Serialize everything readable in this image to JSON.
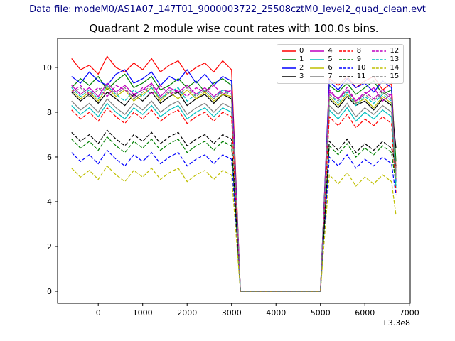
{
  "header": {
    "text": "Data file: modeM0/AS1A07_147T01_9000003722_25508cztM0_level2_quad_clean.evt",
    "color": "#000080"
  },
  "chart_data": {
    "type": "line",
    "title": "Quadrant 2 module wise count rates with 100.0s bins.",
    "xlabel": "",
    "ylabel": "",
    "x_offset_label": "+3.3e8",
    "xlim": [
      -915,
      7020
    ],
    "ylim": [
      -0.54,
      11.3
    ],
    "xticks": [
      0,
      1000,
      2000,
      3000,
      4000,
      5000,
      6000,
      7000
    ],
    "yticks": [
      0,
      2,
      4,
      6,
      8,
      10
    ],
    "grid": false,
    "legend_position": "upper right inside axes, 4 columns",
    "x_units": "time (s), offset +3.3e8",
    "y_units": "count rate (counts/s)",
    "x": [
      -600,
      -400,
      -200,
      0,
      200,
      400,
      600,
      800,
      1000,
      1200,
      1400,
      1600,
      1800,
      2000,
      2200,
      2400,
      2600,
      2800,
      3000,
      3200,
      3400,
      3600,
      3800,
      4000,
      4200,
      4400,
      4600,
      4800,
      5000,
      5200,
      5400,
      5600,
      5800,
      6000,
      6200,
      6400,
      6600,
      6700
    ],
    "series": [
      {
        "name": "0",
        "color": "#ff0000",
        "dash": false,
        "values": [
          10.4,
          9.9,
          10.1,
          9.7,
          10.5,
          10.0,
          9.8,
          10.2,
          9.9,
          10.4,
          9.8,
          10.1,
          10.3,
          9.7,
          10.0,
          10.2,
          9.8,
          10.3,
          9.9,
          0,
          0,
          0,
          0,
          0,
          0,
          0,
          0,
          0,
          0,
          9.5,
          9.2,
          9.6,
          9.1,
          9.4,
          9.6,
          9.0,
          9.3,
          5.5
        ]
      },
      {
        "name": "1",
        "color": "#008000",
        "dash": false,
        "values": [
          9.1,
          9.5,
          9.2,
          9.6,
          9.0,
          9.4,
          9.7,
          9.1,
          9.3,
          9.6,
          9.0,
          9.2,
          9.5,
          9.1,
          9.4,
          8.9,
          9.3,
          9.5,
          9.2,
          0,
          0,
          0,
          0,
          0,
          0,
          0,
          0,
          0,
          0,
          9.2,
          8.9,
          9.3,
          8.8,
          9.1,
          9.4,
          8.8,
          9.0,
          5.8
        ]
      },
      {
        "name": "2",
        "color": "#0000ff",
        "dash": false,
        "values": [
          9.6,
          9.3,
          9.8,
          9.4,
          9.2,
          9.7,
          9.9,
          9.3,
          9.5,
          9.8,
          9.2,
          9.6,
          9.4,
          9.9,
          9.3,
          9.7,
          9.2,
          9.6,
          9.4,
          0,
          0,
          0,
          0,
          0,
          0,
          0,
          0,
          0,
          0,
          9.4,
          9.0,
          9.5,
          9.1,
          9.3,
          8.9,
          9.4,
          9.1,
          4.9
        ]
      },
      {
        "name": "3",
        "color": "#000000",
        "dash": false,
        "values": [
          8.9,
          8.5,
          8.8,
          8.4,
          8.9,
          8.6,
          8.3,
          8.8,
          8.5,
          8.9,
          8.4,
          8.7,
          8.9,
          8.3,
          8.6,
          8.8,
          8.4,
          8.8,
          8.6,
          0,
          0,
          0,
          0,
          0,
          0,
          0,
          0,
          0,
          0,
          8.6,
          8.2,
          8.7,
          8.3,
          8.5,
          8.1,
          8.6,
          8.3,
          6.4
        ]
      },
      {
        "name": "4",
        "color": "#bf00bf",
        "dash": false,
        "values": [
          9.2,
          8.8,
          9.1,
          8.7,
          9.3,
          8.9,
          9.2,
          8.8,
          9.0,
          9.3,
          8.7,
          9.1,
          8.9,
          9.2,
          8.8,
          9.1,
          8.7,
          9.0,
          8.9,
          0,
          0,
          0,
          0,
          0,
          0,
          0,
          0,
          0,
          0,
          8.9,
          8.6,
          9.0,
          8.5,
          8.8,
          9.1,
          8.5,
          8.8,
          5.2
        ]
      },
      {
        "name": "5",
        "color": "#00bfbf",
        "dash": false,
        "values": [
          8.3,
          7.9,
          8.2,
          7.8,
          8.4,
          8.0,
          7.7,
          8.2,
          7.9,
          8.3,
          7.8,
          8.1,
          8.3,
          7.7,
          8.0,
          8.2,
          7.8,
          8.2,
          8.0,
          0,
          0,
          0,
          0,
          0,
          0,
          0,
          0,
          0,
          0,
          8.1,
          7.7,
          8.2,
          7.6,
          8.0,
          7.7,
          8.1,
          7.8,
          4.6
        ]
      },
      {
        "name": "6",
        "color": "#bfbf00",
        "dash": false,
        "values": [
          9.0,
          8.6,
          8.9,
          8.5,
          9.1,
          8.7,
          9.0,
          8.5,
          8.8,
          9.1,
          8.5,
          8.9,
          8.6,
          9.0,
          8.6,
          8.9,
          8.5,
          8.8,
          8.7,
          0,
          0,
          0,
          0,
          0,
          0,
          0,
          0,
          0,
          0,
          8.7,
          8.3,
          8.8,
          8.4,
          8.6,
          8.2,
          8.7,
          8.4,
          5.0
        ]
      },
      {
        "name": "7",
        "color": "#808080",
        "dash": false,
        "values": [
          8.5,
          8.1,
          8.4,
          8.0,
          8.6,
          8.2,
          7.9,
          8.4,
          8.1,
          8.5,
          8.0,
          8.3,
          8.5,
          7.9,
          8.2,
          8.4,
          8.0,
          8.4,
          8.2,
          0,
          0,
          0,
          0,
          0,
          0,
          0,
          0,
          0,
          0,
          8.3,
          7.9,
          8.4,
          7.8,
          8.2,
          7.9,
          8.3,
          8.0,
          5.4
        ]
      },
      {
        "name": "8",
        "color": "#ff0000",
        "dash": true,
        "values": [
          8.1,
          7.7,
          8.0,
          7.6,
          8.2,
          7.8,
          7.5,
          8.0,
          7.7,
          8.1,
          7.6,
          7.9,
          8.1,
          7.5,
          7.8,
          8.0,
          7.6,
          8.0,
          7.8,
          0,
          0,
          0,
          0,
          0,
          0,
          0,
          0,
          0,
          0,
          7.8,
          7.4,
          7.9,
          7.3,
          7.7,
          7.4,
          7.8,
          7.5,
          4.4
        ]
      },
      {
        "name": "9",
        "color": "#008000",
        "dash": true,
        "values": [
          6.8,
          6.4,
          6.7,
          6.3,
          6.9,
          6.5,
          6.2,
          6.7,
          6.4,
          6.8,
          6.3,
          6.6,
          6.8,
          6.2,
          6.5,
          6.7,
          6.3,
          6.7,
          6.5,
          0,
          0,
          0,
          0,
          0,
          0,
          0,
          0,
          0,
          0,
          6.5,
          6.1,
          6.6,
          6.0,
          6.4,
          6.1,
          6.5,
          6.2,
          4.8
        ]
      },
      {
        "name": "10",
        "color": "#0000ff",
        "dash": true,
        "values": [
          6.2,
          5.8,
          6.1,
          5.7,
          6.3,
          5.9,
          5.6,
          6.1,
          5.8,
          6.2,
          5.7,
          6.0,
          6.2,
          5.6,
          5.9,
          6.1,
          5.7,
          6.1,
          5.9,
          0,
          0,
          0,
          0,
          0,
          0,
          0,
          0,
          0,
          0,
          6.0,
          5.6,
          6.1,
          5.5,
          5.9,
          5.6,
          6.0,
          5.7,
          4.3
        ]
      },
      {
        "name": "11",
        "color": "#000000",
        "dash": true,
        "values": [
          7.1,
          6.7,
          7.0,
          6.6,
          7.2,
          6.8,
          6.5,
          7.0,
          6.7,
          7.1,
          6.6,
          6.9,
          7.1,
          6.5,
          6.8,
          7.0,
          6.6,
          7.0,
          6.8,
          0,
          0,
          0,
          0,
          0,
          0,
          0,
          0,
          0,
          0,
          6.7,
          6.3,
          6.8,
          6.2,
          6.6,
          6.3,
          6.7,
          6.4,
          5.6
        ]
      },
      {
        "name": "12",
        "color": "#bf00bf",
        "dash": true,
        "values": [
          8.9,
          9.2,
          8.8,
          9.1,
          8.7,
          9.2,
          9.0,
          8.7,
          9.1,
          8.8,
          9.2,
          8.8,
          9.0,
          8.7,
          9.1,
          8.9,
          9.2,
          8.8,
          9.0,
          0,
          0,
          0,
          0,
          0,
          0,
          0,
          0,
          0,
          0,
          9.0,
          8.6,
          9.1,
          8.5,
          8.9,
          8.6,
          9.0,
          8.7,
          5.0
        ]
      },
      {
        "name": "13",
        "color": "#00bfbf",
        "dash": true,
        "values": [
          9.1,
          8.7,
          9.0,
          8.6,
          9.2,
          8.8,
          8.5,
          9.0,
          8.7,
          9.1,
          8.6,
          8.9,
          9.1,
          8.5,
          8.8,
          9.0,
          8.6,
          9.0,
          8.8,
          0,
          0,
          0,
          0,
          0,
          0,
          0,
          0,
          0,
          0,
          8.8,
          8.4,
          8.9,
          8.3,
          8.7,
          8.4,
          8.8,
          8.5,
          4.7
        ]
      },
      {
        "name": "14",
        "color": "#bfbf00",
        "dash": true,
        "values": [
          5.5,
          5.1,
          5.4,
          5.0,
          5.6,
          5.2,
          4.9,
          5.4,
          5.1,
          5.5,
          5.0,
          5.3,
          5.5,
          4.9,
          5.2,
          5.4,
          5.0,
          5.4,
          5.2,
          0,
          0,
          0,
          0,
          0,
          0,
          0,
          0,
          0,
          0,
          5.2,
          4.8,
          5.3,
          4.7,
          5.1,
          4.8,
          5.2,
          4.9,
          3.4
        ]
      },
      {
        "name": "15",
        "color": "#808080",
        "dash": true,
        "values": [
          8.8,
          9.1,
          8.7,
          9.0,
          9.2,
          8.8,
          9.1,
          8.6,
          8.9,
          9.2,
          8.6,
          9.0,
          8.8,
          9.1,
          8.7,
          9.0,
          8.6,
          8.9,
          8.8,
          0,
          0,
          0,
          0,
          0,
          0,
          0,
          0,
          0,
          0,
          8.8,
          8.5,
          9.0,
          8.4,
          8.8,
          8.5,
          8.9,
          8.6,
          5.1
        ]
      }
    ]
  }
}
